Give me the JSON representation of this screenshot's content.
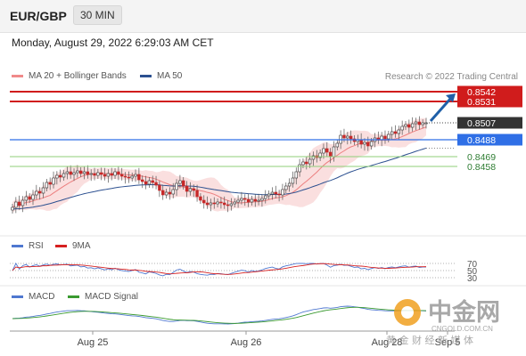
{
  "header": {
    "pair": "EUR/GBP",
    "timeframe": "30 MIN"
  },
  "date_text": "Monday, August 29, 2022 6:29:03 AM CET",
  "source": "Research © 2022 Trading Central",
  "legend": {
    "bb": {
      "label": "MA 20 + Bollinger Bands",
      "color": "#f08a8a"
    },
    "ma50": {
      "label": "MA 50",
      "color": "#2c5090"
    },
    "rsi": {
      "label": "RSI",
      "color": "#4f78d0"
    },
    "ma9": {
      "label": "9MA",
      "color": "#d62020"
    },
    "macd": {
      "label": "MACD",
      "color": "#4f78d0"
    },
    "signal": {
      "label": "MACD Signal",
      "color": "#3a9a30"
    }
  },
  "watermark": {
    "brand": "中金网",
    "site": "CNGOLD.COM.CN",
    "sub": "黄 金 财 经 新 媒 体"
  },
  "chart_data": {
    "type": "candlestick",
    "instrument": "EUR/GBP",
    "timeframe": "30 MIN",
    "x_ticks": [
      "Aug 25",
      "Aug 26",
      "Aug 28",
      "Sep 5"
    ],
    "price_range": [
      0.8395,
      0.8547
    ],
    "levels": [
      {
        "value": 0.8542,
        "label": "0.8542",
        "kind": "resistance",
        "color": "#d01c1c"
      },
      {
        "value": 0.8531,
        "label": "0.8531",
        "kind": "resistance",
        "color": "#d01c1c"
      },
      {
        "value": 0.8507,
        "label": "0.8507",
        "kind": "last",
        "color": "#333333"
      },
      {
        "value": 0.8488,
        "label": "0.8488",
        "kind": "pivot",
        "color": "#2f6fe6"
      },
      {
        "value": 0.8469,
        "label": "0.8469",
        "kind": "support",
        "color": "#8fcf7a"
      },
      {
        "value": 0.8458,
        "label": "0.8458",
        "kind": "support",
        "color": "#8fcf7a"
      }
    ],
    "close": [
      0.8412,
      0.8418,
      0.8414,
      0.842,
      0.8424,
      0.8421,
      0.8426,
      0.843,
      0.8428,
      0.8434,
      0.844,
      0.8438,
      0.8445,
      0.8448,
      0.8446,
      0.845,
      0.8452,
      0.8449,
      0.8451,
      0.8453,
      0.845,
      0.8452,
      0.8449,
      0.845,
      0.8448,
      0.8451,
      0.8449,
      0.8447,
      0.845,
      0.8448,
      0.8452,
      0.8449,
      0.8447,
      0.8446,
      0.8445,
      0.8447,
      0.8449,
      0.8443,
      0.8441,
      0.8438,
      0.8442,
      0.844,
      0.8437,
      0.8431,
      0.8426,
      0.8429,
      0.8427,
      0.8432,
      0.8439,
      0.8442,
      0.8436,
      0.843,
      0.8433,
      0.8431,
      0.8424,
      0.842,
      0.8417,
      0.8415,
      0.8417,
      0.8416,
      0.8418,
      0.8417,
      0.8415,
      0.8414,
      0.8416,
      0.8418,
      0.842,
      0.8422,
      0.8421,
      0.8418,
      0.8421,
      0.8419,
      0.842,
      0.8422,
      0.8425,
      0.8427,
      0.8429,
      0.8427,
      0.8426,
      0.8432,
      0.8436,
      0.8439,
      0.8445,
      0.8452,
      0.846,
      0.8463,
      0.8461,
      0.8466,
      0.847,
      0.8468,
      0.8473,
      0.8478,
      0.8474,
      0.8469,
      0.848,
      0.8484,
      0.8493,
      0.849,
      0.8492,
      0.8489,
      0.8486,
      0.8488,
      0.8483,
      0.8485,
      0.8481,
      0.8486,
      0.849,
      0.8488,
      0.8492,
      0.8489,
      0.8494,
      0.8497,
      0.8495,
      0.8499,
      0.8503,
      0.8505,
      0.8502,
      0.8506,
      0.8508,
      0.8505,
      0.8507,
      0.8507
    ],
    "ma50_start": 0.841,
    "rsi_levels": [
      70,
      50,
      30
    ],
    "projection": {
      "from": 0.8507,
      "to": 0.8542
    }
  }
}
